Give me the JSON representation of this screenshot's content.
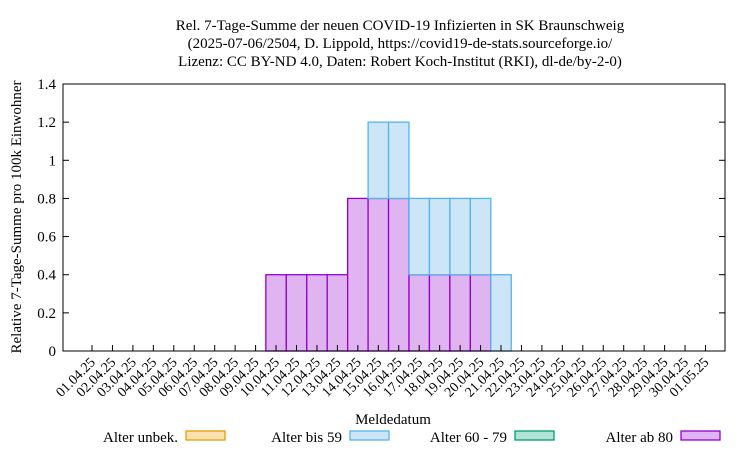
{
  "chart_data": {
    "type": "bar",
    "stacked": true,
    "title_lines": [
      "Rel. 7-Tage-Summe der neuen COVID-19 Infizierten in SK Braunschweig",
      "(2025-07-06/2504, D. Lippold, https://covid19-de-stats.sourceforge.io/",
      "Lizenz: CC BY-ND 4.0, Daten: Robert Koch-Institut (RKI), dl-de/by-2-0)"
    ],
    "xlabel": "Meldedatum",
    "ylabel": "Relative 7-Tage-Summe pro 100k Einwohner",
    "ylim": [
      0,
      1.4
    ],
    "yticks": [
      "0",
      "0.2",
      "0.4",
      "0.6",
      "0.8",
      "1",
      "1.2",
      "1.4"
    ],
    "grid": false,
    "legend_placement": "bottom",
    "categories": [
      "01.04.25",
      "02.04.25",
      "03.04.25",
      "04.04.25",
      "05.04.25",
      "06.04.25",
      "07.04.25",
      "08.04.25",
      "09.04.25",
      "10.04.25",
      "11.04.25",
      "12.04.25",
      "13.04.25",
      "14.04.25",
      "15.04.25",
      "16.04.25",
      "17.04.25",
      "18.04.25",
      "19.04.25",
      "20.04.25",
      "21.04.25",
      "22.04.25",
      "23.04.25",
      "24.04.25",
      "25.04.25",
      "26.04.25",
      "27.04.25",
      "28.04.25",
      "29.04.25",
      "30.04.25",
      "01.05.25"
    ],
    "series": [
      {
        "name": "Alter unbek.",
        "fill": "#f8e0b0",
        "stroke": "#e69f00",
        "values": [
          0,
          0,
          0,
          0,
          0,
          0,
          0,
          0,
          0,
          0,
          0,
          0,
          0,
          0,
          0,
          0,
          0,
          0,
          0,
          0,
          0,
          0,
          0,
          0,
          0,
          0,
          0,
          0,
          0,
          0,
          0
        ]
      },
      {
        "name": "Alter bis 59",
        "fill": "#cce6f8",
        "stroke": "#56b4e9",
        "values": [
          0,
          0,
          0,
          0,
          0,
          0,
          0,
          0,
          0,
          0,
          0,
          0,
          0,
          0,
          0.4,
          0.4,
          0.4,
          0.4,
          0.4,
          0.4,
          0.4,
          0,
          0,
          0,
          0,
          0,
          0,
          0,
          0,
          0,
          0
        ]
      },
      {
        "name": "Alter 60 - 79",
        "fill": "#b3e3d5",
        "stroke": "#009e73",
        "values": [
          0,
          0,
          0,
          0,
          0,
          0,
          0,
          0,
          0,
          0,
          0,
          0,
          0,
          0,
          0,
          0,
          0,
          0,
          0,
          0,
          0,
          0,
          0,
          0,
          0,
          0,
          0,
          0,
          0,
          0,
          0
        ]
      },
      {
        "name": "Alter ab 80",
        "fill": "#e0b4f0",
        "stroke": "#9400d3",
        "values": [
          0,
          0,
          0,
          0,
          0,
          0,
          0,
          0,
          0,
          0.4,
          0.4,
          0.4,
          0.4,
          0.8,
          0.8,
          0.8,
          0.4,
          0.4,
          0.4,
          0.4,
          0,
          0,
          0,
          0,
          0,
          0,
          0,
          0,
          0,
          0,
          0
        ]
      }
    ],
    "stack_order_bottom_to_top": [
      "Alter ab 80",
      "Alter 60 - 79",
      "Alter bis 59",
      "Alter unbek."
    ]
  }
}
